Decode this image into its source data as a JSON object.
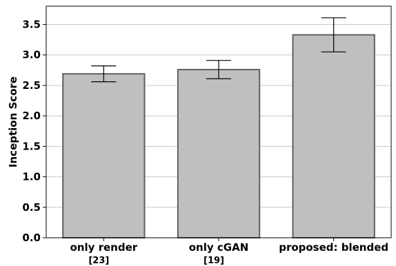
{
  "chart_data": {
    "type": "bar",
    "categories": [
      {
        "label": "only render",
        "sub": "[23]"
      },
      {
        "label": "only cGAN",
        "sub": "[19]"
      },
      {
        "label": "proposed: blended",
        "sub": ""
      }
    ],
    "values": [
      2.69,
      2.76,
      3.33
    ],
    "errors": [
      {
        "low": 2.56,
        "high": 2.82
      },
      {
        "low": 2.61,
        "high": 2.91
      },
      {
        "low": 3.05,
        "high": 3.61
      }
    ],
    "title": "",
    "xlabel": "",
    "ylabel": "Inception Score",
    "ylim": [
      0.0,
      3.8
    ],
    "yticks": [
      "0.0",
      "0.5",
      "1.0",
      "1.5",
      "2.0",
      "2.5",
      "3.0",
      "3.5"
    ],
    "grid": "horizontal",
    "colors": {
      "bar_fill": "#bfbfbf",
      "bar_edge": "#606060",
      "grid": "#c8c8c8",
      "error_bar": "#000000"
    }
  }
}
